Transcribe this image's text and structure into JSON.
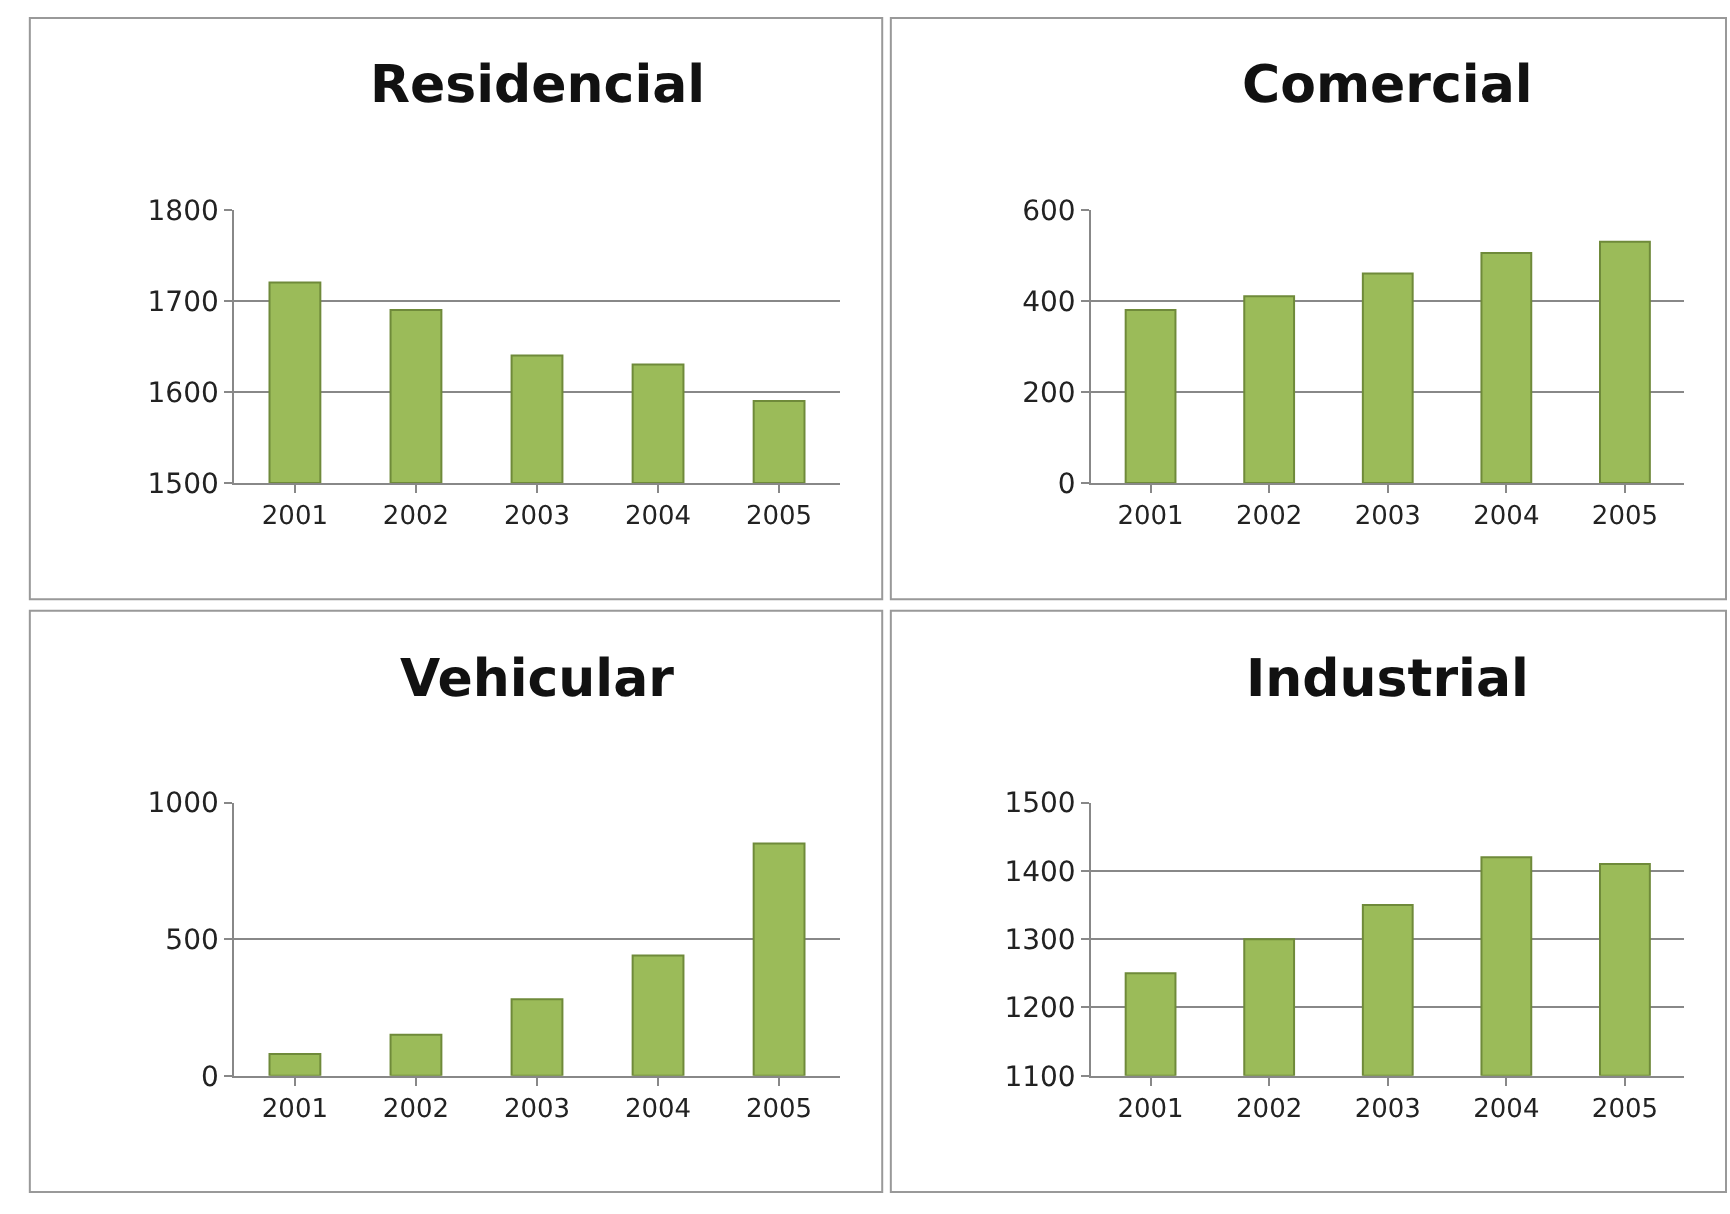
{
  "chart_data": [
    {
      "type": "bar",
      "title": "Residencial",
      "categories": [
        "2001",
        "2002",
        "2003",
        "2004",
        "2005"
      ],
      "values": [
        1720,
        1690,
        1640,
        1630,
        1590
      ],
      "color": "#9bbb59",
      "ylim": [
        1500,
        1800
      ],
      "yticks": [
        1500,
        1600,
        1700,
        1800
      ],
      "grid": "y"
    },
    {
      "type": "bar",
      "title": "Comercial",
      "categories": [
        "2001",
        "2002",
        "2003",
        "2004",
        "2005"
      ],
      "values": [
        380,
        410,
        460,
        505,
        530
      ],
      "color": "#9bbb59",
      "ylim": [
        0,
        600
      ],
      "yticks": [
        0,
        200,
        400,
        600
      ],
      "grid": "y"
    },
    {
      "type": "bar",
      "title": "Vehicular",
      "categories": [
        "2001",
        "2002",
        "2003",
        "2004",
        "2005"
      ],
      "values": [
        80,
        150,
        280,
        440,
        850
      ],
      "color": "#9bbb59",
      "ylim": [
        0,
        1000
      ],
      "yticks": [
        0,
        500,
        1000
      ],
      "grid": "y"
    },
    {
      "type": "bar",
      "title": "Industrial",
      "categories": [
        "2001",
        "2002",
        "2003",
        "2004",
        "2005"
      ],
      "values": [
        1250,
        1300,
        1350,
        1420,
        1410
      ],
      "color": "#9bbb59",
      "ylim": [
        1100,
        1500
      ],
      "yticks": [
        1100,
        1200,
        1300,
        1400,
        1500
      ],
      "grid": "y"
    }
  ]
}
